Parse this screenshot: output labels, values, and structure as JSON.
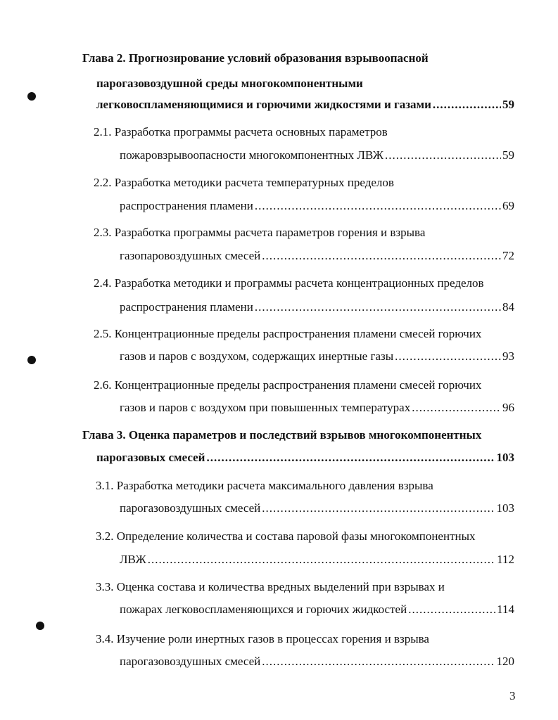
{
  "entries": [
    {
      "kind": "chapter",
      "lines": [
        "Глава 2. Прогнозирование условий образования взрывоопасной",
        "парогазовоздушной среды многокомпонентными",
        "легковоспламеняющимися и горючими жидкостями и газами"
      ],
      "page": "59"
    },
    {
      "kind": "section",
      "lines": [
        "2.1. Разработка программы расчета основных параметров",
        "пожаровзрывоопасности многокомпонентных ЛВЖ"
      ],
      "page": "59"
    },
    {
      "kind": "section",
      "lines": [
        "2.2. Разработка методики расчета температурных пределов",
        "распространения пламени"
      ],
      "page": "69"
    },
    {
      "kind": "section",
      "lines": [
        "2.3.  Разработка программы расчета параметров горения и взрыва",
        "газопаровоздушных смесей"
      ],
      "page": "72"
    },
    {
      "kind": "section",
      "lines": [
        "2.4. Разработка методики и программы расчета концентрационных пределов",
        "распространения пламени"
      ],
      "page": "84"
    },
    {
      "kind": "section",
      "lines": [
        "2.5. Концентрационные пределы распространения пламени смесей горючих",
        "газов и  паров с воздухом, содержащих инертные газы"
      ],
      "page": "93"
    },
    {
      "kind": "section",
      "lines": [
        "2.6. Концентрационные пределы распространения пламени смесей горючих",
        "газов и  паров с воздухом при повышенных температурах"
      ],
      "page": "96"
    },
    {
      "kind": "chapter",
      "lines": [
        "Глава 3. Оценка параметров и последствий взрывов многокомпонентных",
        "парогазовых смесей"
      ],
      "page": "103"
    },
    {
      "kind": "section",
      "lines": [
        "3.1. Разработка методики расчета максимального давления взрыва",
        "парогазовоздушных смесей"
      ],
      "page": "103"
    },
    {
      "kind": "section",
      "lines": [
        "3.2. Определение количества и состава паровой фазы многокомпонентных",
        "ЛВЖ"
      ],
      "page": "112"
    },
    {
      "kind": "section",
      "lines": [
        "3.3. Оценка состава и количества вредных выделений при взрывах и",
        "пожарах легковоспламеняющихся и горючих жидкостей"
      ],
      "page": "114"
    },
    {
      "kind": "section",
      "lines": [
        "3.4. Изучение роли инертных газов в процессах горения и взрыва",
        "парогазовоздушных смесей"
      ],
      "page": "120"
    }
  ],
  "page_number": "3"
}
